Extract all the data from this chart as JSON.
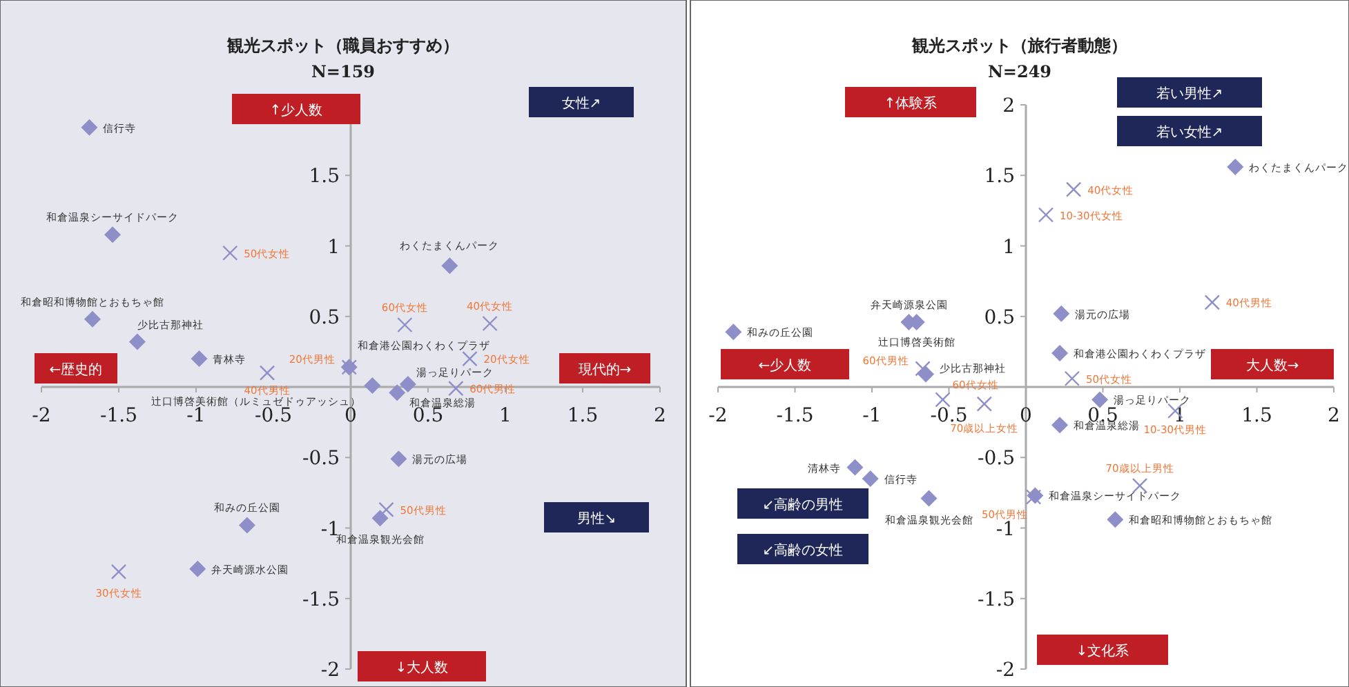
{
  "chart_data": [
    {
      "type": "scatter",
      "title": "観光スポット（職員おすすめ）",
      "subtitle": "N=159",
      "xlim": [
        -2,
        2
      ],
      "ylim": [
        -2,
        2
      ],
      "xticks": [
        -2,
        -1.5,
        -1,
        -0.5,
        0,
        0.5,
        1,
        1.5,
        2
      ],
      "yticks": [
        -2,
        -1.5,
        -1,
        -0.5,
        0.5,
        1,
        1.5
      ],
      "series": [
        {
          "name": "信行寺",
          "marker": "diamond",
          "color": "#8e8ec8",
          "x": [
            -1.69
          ],
          "values": [
            1.84
          ]
        },
        {
          "name": "和倉温泉シーサイドパーク",
          "marker": "diamond",
          "color": "#8e8ec8",
          "x": [
            -1.54
          ],
          "values": [
            1.08
          ]
        },
        {
          "name": "和倉昭和博物館とおもちゃ館",
          "marker": "diamond",
          "color": "#8e8ec8",
          "x": [
            -1.67
          ],
          "values": [
            0.48
          ]
        },
        {
          "name": "少比古那神社",
          "marker": "diamond",
          "color": "#8e8ec8",
          "x": [
            -1.38
          ],
          "values": [
            0.32
          ]
        },
        {
          "name": "青林寺",
          "marker": "diamond",
          "color": "#8e8ec8",
          "x": [
            -0.98
          ],
          "values": [
            0.2
          ]
        },
        {
          "name": "わくたまくんパーク",
          "marker": "diamond",
          "color": "#8e8ec8",
          "x": [
            0.64
          ],
          "values": [
            0.86
          ]
        },
        {
          "name": "和倉港公園わくわくプラザ",
          "marker": "diamond",
          "color": "#8e8ec8",
          "x": [
            -0.01
          ],
          "values": [
            0.14
          ]
        },
        {
          "name": "辻口博啓美術館（ルミュゼドゥアッシュ）",
          "marker": "diamond",
          "color": "#8e8ec8",
          "x": [
            0.14
          ],
          "values": [
            0.01
          ]
        },
        {
          "name": "和倉温泉総湯",
          "marker": "diamond",
          "color": "#8e8ec8",
          "x": [
            0.3
          ],
          "values": [
            -0.04
          ]
        },
        {
          "name": "湯っ足りパーク",
          "marker": "diamond",
          "color": "#8e8ec8",
          "x": [
            0.37
          ],
          "values": [
            0.02
          ]
        },
        {
          "name": "湯元の広場",
          "marker": "diamond",
          "color": "#8e8ec8",
          "x": [
            0.31
          ],
          "values": [
            -0.51
          ]
        },
        {
          "name": "和みの丘公園",
          "marker": "diamond",
          "color": "#8e8ec8",
          "x": [
            -0.67
          ],
          "values": [
            -0.98
          ]
        },
        {
          "name": "弁天崎源水公園",
          "marker": "diamond",
          "color": "#8e8ec8",
          "x": [
            -0.99
          ],
          "values": [
            -1.29
          ]
        },
        {
          "name": "和倉温泉観光会館",
          "marker": "diamond",
          "color": "#8e8ec8",
          "x": [
            0.19
          ],
          "values": [
            -0.93
          ]
        },
        {
          "name": "50代女性",
          "marker": "cross",
          "color": "#8e8ec8",
          "x": [
            -0.78
          ],
          "values": [
            0.95
          ]
        },
        {
          "name": "40代男性",
          "marker": "cross",
          "color": "#8e8ec8",
          "x": [
            -0.54
          ],
          "values": [
            0.1
          ]
        },
        {
          "name": "60代女性",
          "marker": "cross",
          "color": "#8e8ec8",
          "x": [
            0.35
          ],
          "values": [
            0.44
          ]
        },
        {
          "name": "40代女性",
          "marker": "cross",
          "color": "#8e8ec8",
          "x": [
            0.9
          ],
          "values": [
            0.45
          ]
        },
        {
          "name": "20代女性",
          "marker": "cross",
          "color": "#8e8ec8",
          "x": [
            0.77
          ],
          "values": [
            0.2
          ]
        },
        {
          "name": "20代男性",
          "marker": "cross",
          "color": "#8e8ec8",
          "x": [
            -0.01
          ],
          "values": [
            0.14
          ]
        },
        {
          "name": "60代男性",
          "marker": "cross",
          "color": "#8e8ec8",
          "x": [
            0.68
          ],
          "values": [
            -0.01
          ]
        },
        {
          "name": "50代男性",
          "marker": "cross",
          "color": "#8e8ec8",
          "x": [
            0.23
          ],
          "values": [
            -0.87
          ]
        },
        {
          "name": "30代女性",
          "marker": "cross",
          "color": "#8e8ec8",
          "x": [
            -1.5
          ],
          "values": [
            -1.31
          ]
        }
      ],
      "annotations": [
        "↑少人数",
        "←歴史的",
        "現代的→",
        "↓大人数",
        "女性↗",
        "男性↘"
      ]
    },
    {
      "type": "scatter",
      "title": "観光スポット（旅行者動態）",
      "subtitle": "N=249",
      "xlim": [
        -2,
        2
      ],
      "ylim": [
        -2,
        2
      ],
      "xticks": [
        -2,
        -1.5,
        -1,
        -0.5,
        0,
        0.5,
        1,
        1.5,
        2
      ],
      "yticks": [
        -2,
        -1.5,
        -1,
        -0.5,
        0.5,
        1,
        1.5,
        2
      ],
      "series": [
        {
          "name": "わくたまくんパーク",
          "marker": "diamond",
          "color": "#8e8ec8",
          "x": [
            1.36
          ],
          "values": [
            1.56
          ]
        },
        {
          "name": "和みの丘公園",
          "marker": "diamond",
          "color": "#8e8ec8",
          "x": [
            -1.9
          ],
          "values": [
            0.39
          ]
        },
        {
          "name": "弁天崎源泉公園",
          "marker": "diamond",
          "color": "#8e8ec8",
          "x": [
            -0.76
          ],
          "values": [
            0.46
          ]
        },
        {
          "name": "辻口博啓美術館",
          "marker": "diamond",
          "color": "#8e8ec8",
          "x": [
            -0.71
          ],
          "values": [
            0.46
          ]
        },
        {
          "name": "少比古那神社",
          "marker": "diamond",
          "color": "#8e8ec8",
          "x": [
            -0.65
          ],
          "values": [
            0.09
          ]
        },
        {
          "name": "湯元の広場",
          "marker": "diamond",
          "color": "#8e8ec8",
          "x": [
            0.23
          ],
          "values": [
            0.52
          ]
        },
        {
          "name": "和倉港公園わくわくプラザ",
          "marker": "diamond",
          "color": "#8e8ec8",
          "x": [
            0.22
          ],
          "values": [
            0.24
          ]
        },
        {
          "name": "湯っ足りパーク",
          "marker": "diamond",
          "color": "#8e8ec8",
          "x": [
            0.48
          ],
          "values": [
            -0.09
          ]
        },
        {
          "name": "和倉温泉総湯",
          "marker": "diamond",
          "color": "#8e8ec8",
          "x": [
            0.22
          ],
          "values": [
            -0.27
          ]
        },
        {
          "name": "清林寺",
          "marker": "diamond",
          "color": "#8e8ec8",
          "x": [
            -1.11
          ],
          "values": [
            -0.57
          ]
        },
        {
          "name": "信行寺",
          "marker": "diamond",
          "color": "#8e8ec8",
          "x": [
            -1.01
          ],
          "values": [
            -0.65
          ]
        },
        {
          "name": "和倉温泉観光会館",
          "marker": "diamond",
          "color": "#8e8ec8",
          "x": [
            -0.63
          ],
          "values": [
            -0.79
          ]
        },
        {
          "name": "和倉温泉シーサイドパーク",
          "marker": "diamond",
          "color": "#8e8ec8",
          "x": [
            0.06
          ],
          "values": [
            -0.77
          ]
        },
        {
          "name": "和倉昭和博物館とおもちゃ館",
          "marker": "diamond",
          "color": "#8e8ec8",
          "x": [
            0.58
          ],
          "values": [
            -0.94
          ]
        },
        {
          "name": "40代女性",
          "marker": "cross",
          "color": "#8e8ec8",
          "x": [
            0.31
          ],
          "values": [
            1.4
          ]
        },
        {
          "name": "10-30代女性",
          "marker": "cross",
          "color": "#8e8ec8",
          "x": [
            0.13
          ],
          "values": [
            1.22
          ]
        },
        {
          "name": "40代男性",
          "marker": "cross",
          "color": "#8e8ec8",
          "x": [
            1.21
          ],
          "values": [
            0.6
          ]
        },
        {
          "name": "50代女性",
          "marker": "cross",
          "color": "#8e8ec8",
          "x": [
            0.3
          ],
          "values": [
            0.06
          ]
        },
        {
          "name": "10-30代男性",
          "marker": "cross",
          "color": "#8e8ec8",
          "x": [
            0.97
          ],
          "values": [
            -0.17
          ]
        },
        {
          "name": "60代男性",
          "marker": "cross",
          "color": "#8e8ec8",
          "x": [
            -0.67
          ],
          "values": [
            0.13
          ]
        },
        {
          "name": "60代女性",
          "marker": "cross",
          "color": "#8e8ec8",
          "x": [
            -0.54
          ],
          "values": [
            -0.09
          ]
        },
        {
          "name": "70歳以上女性",
          "marker": "cross",
          "color": "#8e8ec8",
          "x": [
            -0.27
          ],
          "values": [
            -0.12
          ]
        },
        {
          "name": "70歳以上男性",
          "marker": "cross",
          "color": "#8e8ec8",
          "x": [
            0.74
          ],
          "values": [
            -0.7
          ]
        },
        {
          "name": "50代男性",
          "marker": "cross",
          "color": "#8e8ec8",
          "x": [
            0.05
          ],
          "values": [
            -0.78
          ]
        }
      ],
      "annotations": [
        "↑体験系",
        "若い男性↗",
        "若い女性↗",
        "←少人数",
        "大人数→",
        "↙高齢の男性",
        "↙高齢の女性",
        "↓文化系"
      ]
    }
  ]
}
